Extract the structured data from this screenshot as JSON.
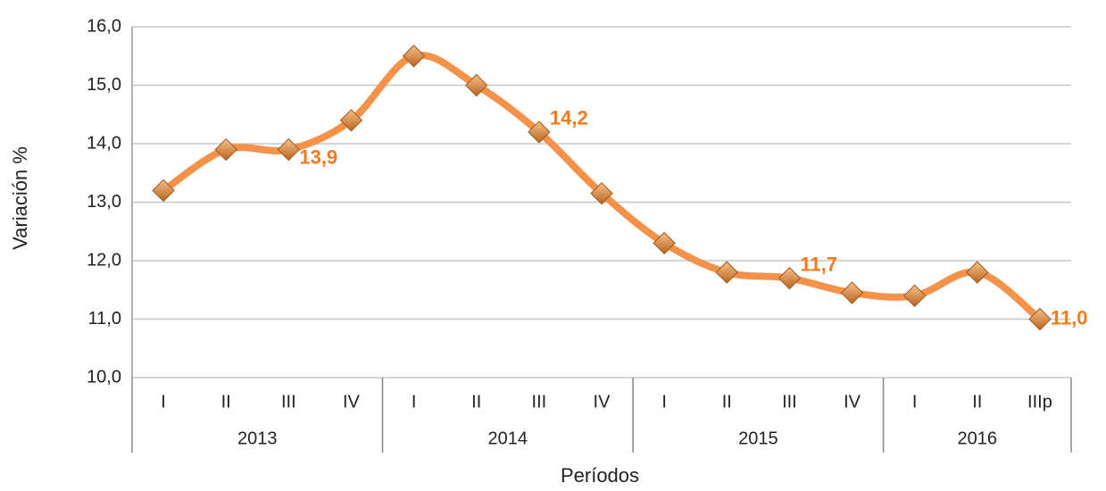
{
  "chart_data": {
    "type": "line",
    "y_label": "Variación %",
    "x_label": "Períodos",
    "categories": [
      "I",
      "II",
      "III",
      "IV",
      "I",
      "II",
      "III",
      "IV",
      "I",
      "II",
      "III",
      "IV",
      "I",
      "II",
      "IIIp"
    ],
    "x_groups": [
      {
        "label": "2013",
        "count": 4
      },
      {
        "label": "2014",
        "count": 4
      },
      {
        "label": "2015",
        "count": 4
      },
      {
        "label": "2016",
        "count": 3
      }
    ],
    "series": [
      {
        "name": "Variación %",
        "color": "#f4924a",
        "values": [
          13.2,
          13.9,
          13.9,
          14.4,
          15.5,
          15.0,
          14.2,
          13.15,
          12.3,
          11.8,
          11.7,
          11.45,
          11.4,
          11.8,
          11.0
        ],
        "value_labels": [
          null,
          null,
          "13,9",
          null,
          null,
          null,
          "14,2",
          null,
          null,
          null,
          "11,7",
          null,
          null,
          null,
          "11,0"
        ]
      }
    ],
    "ylim": [
      10,
      16
    ],
    "yticks": [
      {
        "value": 10,
        "label": "10,0"
      },
      {
        "value": 11,
        "label": "11,0"
      },
      {
        "value": 12,
        "label": "12,0"
      },
      {
        "value": 13,
        "label": "13,0"
      },
      {
        "value": 14,
        "label": "14,0"
      },
      {
        "value": 15,
        "label": "15,0"
      },
      {
        "value": 16,
        "label": "16,0"
      }
    ],
    "grid": true
  }
}
